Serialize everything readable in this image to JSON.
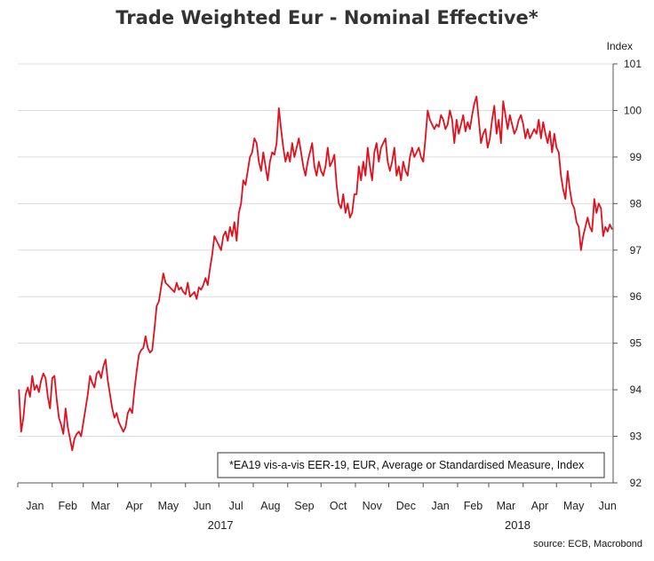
{
  "title": "Trade Weighted Eur - Nominal Effective*",
  "source": "source: ECB, Macrobond",
  "colors": {
    "series": "#e0101e",
    "grid": "#dcdcdc",
    "axis": "#555555"
  },
  "chart_data": {
    "type": "line",
    "ylabel": "Index",
    "ylim": [
      92,
      101
    ],
    "y_ticks": [
      92,
      93,
      94,
      95,
      96,
      97,
      98,
      99,
      100,
      101
    ],
    "x_ticks": [
      "Jan",
      "Feb",
      "Mar",
      "Apr",
      "May",
      "Jun",
      "Jul",
      "Aug",
      "Sep",
      "Oct",
      "Nov",
      "Dec",
      "Jan",
      "Feb",
      "Mar",
      "Apr",
      "May",
      "Jun"
    ],
    "years": [
      "2017",
      "2018"
    ],
    "x_range": [
      "2017-01-01",
      "2018-06-20"
    ],
    "grid": "horizontal",
    "annotation": "*EA19 vis-a-vis EER-19, EUR, Average or Standardised Measure, Index",
    "series": [
      {
        "values": [
          [
            "2017-01-02",
            94.0
          ],
          [
            "2017-01-04",
            93.1
          ],
          [
            "2017-01-06",
            93.4
          ],
          [
            "2017-01-08",
            93.9
          ],
          [
            "2017-01-10",
            94.05
          ],
          [
            "2017-01-12",
            93.85
          ],
          [
            "2017-01-14",
            94.3
          ],
          [
            "2017-01-16",
            94.0
          ],
          [
            "2017-01-18",
            94.1
          ],
          [
            "2017-01-20",
            93.95
          ],
          [
            "2017-01-22",
            94.2
          ],
          [
            "2017-01-24",
            94.35
          ],
          [
            "2017-01-26",
            94.25
          ],
          [
            "2017-01-28",
            93.85
          ],
          [
            "2017-01-30",
            93.6
          ],
          [
            "2017-02-01",
            94.25
          ],
          [
            "2017-02-03",
            94.3
          ],
          [
            "2017-02-05",
            93.8
          ],
          [
            "2017-02-07",
            93.4
          ],
          [
            "2017-02-09",
            93.25
          ],
          [
            "2017-02-11",
            93.05
          ],
          [
            "2017-02-13",
            93.6
          ],
          [
            "2017-02-15",
            93.2
          ],
          [
            "2017-02-17",
            92.95
          ],
          [
            "2017-02-19",
            92.7
          ],
          [
            "2017-02-21",
            92.95
          ],
          [
            "2017-02-23",
            93.05
          ],
          [
            "2017-02-25",
            93.1
          ],
          [
            "2017-02-27",
            93.0
          ],
          [
            "2017-03-01",
            93.3
          ],
          [
            "2017-03-03",
            93.6
          ],
          [
            "2017-03-05",
            93.9
          ],
          [
            "2017-03-07",
            94.3
          ],
          [
            "2017-03-09",
            94.15
          ],
          [
            "2017-03-11",
            94.05
          ],
          [
            "2017-03-13",
            94.35
          ],
          [
            "2017-03-15",
            94.4
          ],
          [
            "2017-03-17",
            94.25
          ],
          [
            "2017-03-19",
            94.5
          ],
          [
            "2017-03-21",
            94.65
          ],
          [
            "2017-03-23",
            94.2
          ],
          [
            "2017-03-25",
            93.9
          ],
          [
            "2017-03-27",
            93.6
          ],
          [
            "2017-03-29",
            93.4
          ],
          [
            "2017-03-31",
            93.5
          ],
          [
            "2017-04-02",
            93.3
          ],
          [
            "2017-04-04",
            93.2
          ],
          [
            "2017-04-06",
            93.1
          ],
          [
            "2017-04-08",
            93.2
          ],
          [
            "2017-04-10",
            93.5
          ],
          [
            "2017-04-12",
            93.6
          ],
          [
            "2017-04-14",
            93.5
          ],
          [
            "2017-04-16",
            94.0
          ],
          [
            "2017-04-18",
            94.4
          ],
          [
            "2017-04-20",
            94.75
          ],
          [
            "2017-04-22",
            94.85
          ],
          [
            "2017-04-24",
            94.9
          ],
          [
            "2017-04-26",
            95.15
          ],
          [
            "2017-04-28",
            94.9
          ],
          [
            "2017-04-30",
            94.8
          ],
          [
            "2017-05-02",
            94.85
          ],
          [
            "2017-05-04",
            95.3
          ],
          [
            "2017-05-06",
            95.8
          ],
          [
            "2017-05-08",
            95.9
          ],
          [
            "2017-05-10",
            96.2
          ],
          [
            "2017-05-12",
            96.5
          ],
          [
            "2017-05-14",
            96.3
          ],
          [
            "2017-05-16",
            96.25
          ],
          [
            "2017-05-18",
            96.2
          ],
          [
            "2017-05-20",
            96.15
          ],
          [
            "2017-05-22",
            96.1
          ],
          [
            "2017-05-24",
            96.3
          ],
          [
            "2017-05-26",
            96.15
          ],
          [
            "2017-05-28",
            96.2
          ],
          [
            "2017-05-30",
            96.1
          ],
          [
            "2017-06-01",
            96.05
          ],
          [
            "2017-06-03",
            96.3
          ],
          [
            "2017-06-05",
            96.0
          ],
          [
            "2017-06-07",
            96.05
          ],
          [
            "2017-06-09",
            96.1
          ],
          [
            "2017-06-11",
            95.95
          ],
          [
            "2017-06-13",
            96.2
          ],
          [
            "2017-06-15",
            96.15
          ],
          [
            "2017-06-17",
            96.25
          ],
          [
            "2017-06-19",
            96.4
          ],
          [
            "2017-06-21",
            96.25
          ],
          [
            "2017-06-23",
            96.6
          ],
          [
            "2017-06-25",
            96.9
          ],
          [
            "2017-06-27",
            97.3
          ],
          [
            "2017-06-29",
            97.2
          ],
          [
            "2017-07-01",
            97.1
          ],
          [
            "2017-07-03",
            97.0
          ],
          [
            "2017-07-05",
            97.3
          ],
          [
            "2017-07-07",
            97.4
          ],
          [
            "2017-07-09",
            97.2
          ],
          [
            "2017-07-11",
            97.5
          ],
          [
            "2017-07-13",
            97.3
          ],
          [
            "2017-07-15",
            97.6
          ],
          [
            "2017-07-17",
            97.2
          ],
          [
            "2017-07-19",
            97.8
          ],
          [
            "2017-07-21",
            98.0
          ],
          [
            "2017-07-23",
            98.5
          ],
          [
            "2017-07-25",
            98.4
          ],
          [
            "2017-07-27",
            98.7
          ],
          [
            "2017-07-29",
            99.0
          ],
          [
            "2017-07-31",
            99.1
          ],
          [
            "2017-08-02",
            99.4
          ],
          [
            "2017-08-04",
            99.3
          ],
          [
            "2017-08-06",
            98.9
          ],
          [
            "2017-08-08",
            98.7
          ],
          [
            "2017-08-10",
            99.1
          ],
          [
            "2017-08-12",
            98.8
          ],
          [
            "2017-08-14",
            98.5
          ],
          [
            "2017-08-16",
            98.9
          ],
          [
            "2017-08-18",
            99.1
          ],
          [
            "2017-08-20",
            99.05
          ],
          [
            "2017-08-22",
            99.3
          ],
          [
            "2017-08-24",
            100.05
          ],
          [
            "2017-08-26",
            99.6
          ],
          [
            "2017-08-28",
            99.2
          ],
          [
            "2017-08-30",
            98.9
          ],
          [
            "2017-09-01",
            99.1
          ],
          [
            "2017-09-03",
            98.9
          ],
          [
            "2017-09-05",
            99.3
          ],
          [
            "2017-09-07",
            99.0
          ],
          [
            "2017-09-09",
            99.2
          ],
          [
            "2017-09-11",
            99.4
          ],
          [
            "2017-09-13",
            99.1
          ],
          [
            "2017-09-15",
            98.8
          ],
          [
            "2017-09-17",
            98.6
          ],
          [
            "2017-09-19",
            98.9
          ],
          [
            "2017-09-21",
            99.1
          ],
          [
            "2017-09-23",
            99.3
          ],
          [
            "2017-09-25",
            98.8
          ],
          [
            "2017-09-27",
            98.6
          ],
          [
            "2017-09-29",
            98.9
          ],
          [
            "2017-10-01",
            98.7
          ],
          [
            "2017-10-03",
            98.6
          ],
          [
            "2017-10-05",
            98.8
          ],
          [
            "2017-10-07",
            99.2
          ],
          [
            "2017-10-09",
            98.8
          ],
          [
            "2017-10-11",
            98.9
          ],
          [
            "2017-10-13",
            99.05
          ],
          [
            "2017-10-15",
            98.4
          ],
          [
            "2017-10-17",
            98.0
          ],
          [
            "2017-10-19",
            97.9
          ],
          [
            "2017-10-21",
            98.2
          ],
          [
            "2017-10-23",
            97.8
          ],
          [
            "2017-10-25",
            98.0
          ],
          [
            "2017-10-27",
            97.7
          ],
          [
            "2017-10-29",
            97.8
          ],
          [
            "2017-10-31",
            98.2
          ],
          [
            "2017-11-02",
            98.2
          ],
          [
            "2017-11-04",
            98.8
          ],
          [
            "2017-11-06",
            98.5
          ],
          [
            "2017-11-08",
            98.9
          ],
          [
            "2017-11-10",
            98.6
          ],
          [
            "2017-11-12",
            99.2
          ],
          [
            "2017-11-14",
            98.8
          ],
          [
            "2017-11-16",
            98.5
          ],
          [
            "2017-11-18",
            99.1
          ],
          [
            "2017-11-20",
            99.3
          ],
          [
            "2017-11-22",
            98.9
          ],
          [
            "2017-11-24",
            99.2
          ],
          [
            "2017-11-26",
            99.3
          ],
          [
            "2017-11-28",
            99.4
          ],
          [
            "2017-11-30",
            98.9
          ],
          [
            "2017-12-02",
            98.7
          ],
          [
            "2017-12-04",
            98.9
          ],
          [
            "2017-12-06",
            99.2
          ],
          [
            "2017-12-08",
            98.6
          ],
          [
            "2017-12-10",
            98.8
          ],
          [
            "2017-12-12",
            98.5
          ],
          [
            "2017-12-14",
            98.9
          ],
          [
            "2017-12-16",
            98.7
          ],
          [
            "2017-12-18",
            98.6
          ],
          [
            "2017-12-20",
            99.0
          ],
          [
            "2017-12-22",
            99.2
          ],
          [
            "2017-12-24",
            99.0
          ],
          [
            "2017-12-26",
            99.1
          ],
          [
            "2017-12-28",
            99.2
          ],
          [
            "2017-12-30",
            99.0
          ],
          [
            "2018-01-01",
            98.9
          ],
          [
            "2018-01-03",
            99.4
          ],
          [
            "2018-01-05",
            100.0
          ],
          [
            "2018-01-07",
            99.8
          ],
          [
            "2018-01-09",
            99.7
          ],
          [
            "2018-01-11",
            99.6
          ],
          [
            "2018-01-13",
            99.7
          ],
          [
            "2018-01-15",
            99.65
          ],
          [
            "2018-01-17",
            99.9
          ],
          [
            "2018-01-19",
            99.8
          ],
          [
            "2018-01-21",
            99.6
          ],
          [
            "2018-01-23",
            99.7
          ],
          [
            "2018-01-25",
            100.0
          ],
          [
            "2018-01-27",
            99.8
          ],
          [
            "2018-01-29",
            99.3
          ],
          [
            "2018-01-31",
            99.8
          ],
          [
            "2018-02-02",
            99.5
          ],
          [
            "2018-02-04",
            99.7
          ],
          [
            "2018-02-06",
            99.9
          ],
          [
            "2018-02-08",
            99.55
          ],
          [
            "2018-02-10",
            99.75
          ],
          [
            "2018-02-12",
            99.6
          ],
          [
            "2018-02-14",
            99.9
          ],
          [
            "2018-02-16",
            100.15
          ],
          [
            "2018-02-18",
            100.3
          ],
          [
            "2018-02-20",
            99.8
          ],
          [
            "2018-02-22",
            99.3
          ],
          [
            "2018-02-24",
            99.5
          ],
          [
            "2018-02-26",
            99.6
          ],
          [
            "2018-02-28",
            99.2
          ],
          [
            "2018-03-02",
            99.4
          ],
          [
            "2018-03-04",
            99.8
          ],
          [
            "2018-03-06",
            100.1
          ],
          [
            "2018-03-08",
            99.5
          ],
          [
            "2018-03-10",
            99.8
          ],
          [
            "2018-03-12",
            99.3
          ],
          [
            "2018-03-14",
            100.2
          ],
          [
            "2018-03-16",
            99.9
          ],
          [
            "2018-03-18",
            99.6
          ],
          [
            "2018-03-20",
            99.9
          ],
          [
            "2018-03-22",
            99.7
          ],
          [
            "2018-03-24",
            99.5
          ],
          [
            "2018-03-26",
            99.6
          ],
          [
            "2018-03-28",
            99.8
          ],
          [
            "2018-03-30",
            99.9
          ],
          [
            "2018-04-01",
            99.7
          ],
          [
            "2018-04-03",
            99.4
          ],
          [
            "2018-04-05",
            99.6
          ],
          [
            "2018-04-07",
            99.4
          ],
          [
            "2018-04-09",
            99.5
          ],
          [
            "2018-04-11",
            99.6
          ],
          [
            "2018-04-13",
            99.5
          ],
          [
            "2018-04-15",
            99.8
          ],
          [
            "2018-04-17",
            99.4
          ],
          [
            "2018-04-19",
            99.75
          ],
          [
            "2018-04-21",
            99.5
          ],
          [
            "2018-04-23",
            99.3
          ],
          [
            "2018-04-25",
            99.55
          ],
          [
            "2018-04-27",
            99.1
          ],
          [
            "2018-04-29",
            99.5
          ],
          [
            "2018-05-01",
            99.2
          ],
          [
            "2018-05-03",
            99.1
          ],
          [
            "2018-05-05",
            98.6
          ],
          [
            "2018-05-07",
            98.3
          ],
          [
            "2018-05-09",
            98.1
          ],
          [
            "2018-05-11",
            98.7
          ],
          [
            "2018-05-13",
            98.3
          ],
          [
            "2018-05-15",
            98.0
          ],
          [
            "2018-05-17",
            97.9
          ],
          [
            "2018-05-19",
            97.6
          ],
          [
            "2018-05-21",
            97.5
          ],
          [
            "2018-05-23",
            97.0
          ],
          [
            "2018-05-25",
            97.3
          ],
          [
            "2018-05-27",
            97.5
          ],
          [
            "2018-05-29",
            97.7
          ],
          [
            "2018-05-31",
            97.5
          ],
          [
            "2018-06-02",
            97.4
          ],
          [
            "2018-06-04",
            98.1
          ],
          [
            "2018-06-06",
            97.8
          ],
          [
            "2018-06-08",
            98.0
          ],
          [
            "2018-06-10",
            97.9
          ],
          [
            "2018-06-12",
            97.3
          ],
          [
            "2018-06-14",
            97.5
          ],
          [
            "2018-06-16",
            97.4
          ],
          [
            "2018-06-18",
            97.55
          ],
          [
            "2018-06-20",
            97.45
          ]
        ]
      }
    ]
  }
}
